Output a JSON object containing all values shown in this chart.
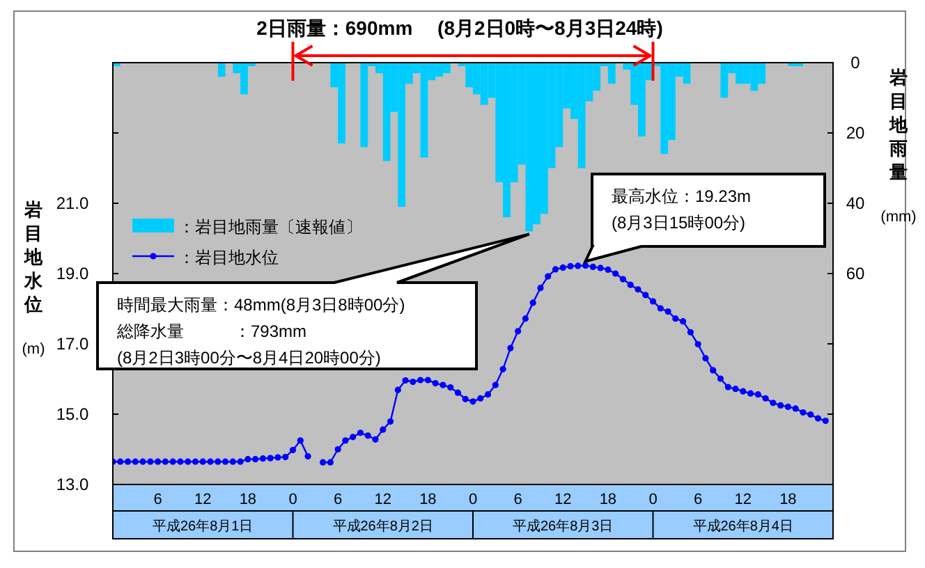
{
  "chart_data": {
    "type": "bar",
    "title": "2日雨量：690mm　 (8月2日0時〜8月3日24時)",
    "ylabel": "岩目地水位 (m)",
    "y2label": "岩目地雨量 (mm)",
    "xlim": [
      "--08-01T00:00",
      "--08-05T00:00"
    ],
    "xticks": [
      {
        "value": "--08-01T06:00",
        "label": "6"
      },
      {
        "value": "--08-01T12:00",
        "label": "12"
      },
      {
        "value": "--08-01T18:00",
        "label": "18"
      },
      {
        "value": "--08-02T00:00",
        "label": "0"
      },
      {
        "value": "--08-02T06:00",
        "label": "6"
      },
      {
        "value": "--08-02T12:00",
        "label": "12"
      },
      {
        "value": "--08-02T18:00",
        "label": "18"
      },
      {
        "value": "--08-03T00:00",
        "label": "0"
      },
      {
        "value": "--08-03T06:00",
        "label": "6"
      },
      {
        "value": "--08-03T12:00",
        "label": "12"
      },
      {
        "value": "--08-03T18:00",
        "label": "18"
      },
      {
        "value": "--08-04T00:00",
        "label": "0"
      },
      {
        "value": "--08-04T06:00",
        "label": "6"
      },
      {
        "value": "--08-04T12:00",
        "label": "12"
      },
      {
        "value": "--08-04T18:00",
        "label": "18"
      }
    ],
    "ylim": [
      13,
      25
    ],
    "yticks": [
      {
        "value": 13,
        "label": "13.0"
      },
      {
        "value": 15,
        "label": "15.0"
      },
      {
        "value": 17,
        "label": "17.0"
      },
      {
        "value": 19,
        "label": "19.0"
      },
      {
        "value": 21,
        "label": "21.0"
      },
      {
        "value": 23,
        "label": null
      }
    ],
    "y2lim": [
      120,
      0
    ],
    "y2ticks": [
      0,
      20,
      40,
      60,
      {
        "value": 80,
        "label": null
      },
      {
        "value": 100,
        "label": null
      }
    ],
    "legend": "left",
    "annotations": [
      {
        "text": "最高水位：19.23m\n(8月3日15時00分)",
        "x": "--08-03T15:00",
        "y": 19.23
      },
      "時間最大雨量：48mm(8月3日8時00分)\n総降水量　　　：793mm\n(8月2日3時00分〜8月4日20時00分)",
      "平成26年8月1日",
      "平成26年8月2日",
      "平成26年8月3日",
      "平成26年8月4日"
    ],
    "series": [
      {
        "name": "：岩目地雨量〔速報値〕",
        "axis": "y2",
        "color": "#00ccff",
        "x": [
          "--08-01T00:30",
          "--08-01T01:30",
          "--08-01T02:30",
          "--08-01T03:30",
          "--08-01T04:30",
          "--08-01T05:30",
          "--08-01T06:30",
          "--08-01T07:30",
          "--08-01T08:30",
          "--08-01T09:30",
          "--08-01T10:30",
          "--08-01T11:30",
          "--08-01T12:30",
          "--08-01T13:30",
          "--08-01T14:30",
          "--08-01T15:30",
          "--08-01T16:30",
          "--08-01T17:30",
          "--08-01T18:30",
          "--08-01T19:30",
          "--08-01T20:30",
          "--08-01T21:30",
          "--08-01T22:30",
          "--08-01T23:30",
          "--08-02T00:30",
          "--08-02T01:30",
          "--08-02T02:30",
          "--08-02T03:30",
          "--08-02T04:30",
          "--08-02T05:30",
          "--08-02T06:30",
          "--08-02T07:30",
          "--08-02T08:30",
          "--08-02T09:30",
          "--08-02T10:30",
          "--08-02T11:30",
          "--08-02T12:30",
          "--08-02T13:30",
          "--08-02T14:30",
          "--08-02T15:30",
          "--08-02T16:30",
          "--08-02T17:30",
          "--08-02T18:30",
          "--08-02T19:30",
          "--08-02T20:30",
          "--08-02T21:30",
          "--08-02T22:30",
          "--08-02T23:30",
          "--08-03T00:30",
          "--08-03T01:30",
          "--08-03T02:30",
          "--08-03T03:30",
          "--08-03T04:30",
          "--08-03T05:30",
          "--08-03T06:30",
          "--08-03T07:30",
          "--08-03T08:30",
          "--08-03T09:30",
          "--08-03T10:30",
          "--08-03T11:30",
          "--08-03T12:30",
          "--08-03T13:30",
          "--08-03T14:30",
          "--08-03T15:30",
          "--08-03T16:30",
          "--08-03T17:30",
          "--08-03T18:30",
          "--08-03T19:30",
          "--08-03T20:30",
          "--08-03T21:30",
          "--08-03T22:30",
          "--08-03T23:30",
          "--08-04T00:30",
          "--08-04T01:30",
          "--08-04T02:30",
          "--08-04T03:30",
          "--08-04T04:30",
          "--08-04T05:30",
          "--08-04T06:30",
          "--08-04T07:30",
          "--08-04T08:30",
          "--08-04T09:30",
          "--08-04T10:30",
          "--08-04T11:30",
          "--08-04T12:30",
          "--08-04T13:30",
          "--08-04T14:30",
          "--08-04T15:30",
          "--08-04T16:30",
          "--08-04T17:30",
          "--08-04T18:30",
          "--08-04T19:30",
          "--08-04T20:30",
          "--08-04T21:30",
          "--08-04T22:30",
          "--08-04T23:30"
        ],
        "values": [
          1,
          0,
          0,
          0,
          0,
          0,
          0,
          0,
          0,
          0,
          0,
          0,
          0,
          0,
          4,
          0,
          3,
          9,
          1,
          0,
          0,
          0,
          0,
          0,
          0,
          0,
          0,
          0,
          0,
          7,
          23,
          0,
          0,
          24,
          1,
          3,
          28,
          14,
          41,
          6,
          3,
          27,
          5,
          4,
          3,
          0,
          1,
          7,
          9,
          12,
          10,
          34,
          44,
          34,
          29,
          48,
          46,
          43,
          30,
          24,
          13,
          16,
          30,
          11,
          8,
          1,
          6,
          0,
          2,
          12,
          21,
          5,
          1,
          26,
          22,
          4,
          6,
          0,
          0,
          0,
          0,
          10,
          3,
          6,
          6,
          8,
          6,
          0,
          0,
          0,
          1,
          1,
          0,
          0,
          0,
          0
        ]
      },
      {
        "name": "：岩目地水位",
        "type": "line",
        "axis": "y",
        "color": "#0000ff",
        "marker": "circle",
        "x": [
          "--08-01T00:00",
          "--08-01T01:00",
          "--08-01T02:00",
          "--08-01T03:00",
          "--08-01T04:00",
          "--08-01T05:00",
          "--08-01T06:00",
          "--08-01T07:00",
          "--08-01T08:00",
          "--08-01T09:00",
          "--08-01T10:00",
          "--08-01T11:00",
          "--08-01T12:00",
          "--08-01T13:00",
          "--08-01T14:00",
          "--08-01T15:00",
          "--08-01T16:00",
          "--08-01T17:00",
          "--08-01T18:00",
          "--08-01T19:00",
          "--08-01T20:00",
          "--08-01T21:00",
          "--08-01T22:00",
          "--08-01T23:00",
          "--08-02T00:00",
          "--08-02T01:00",
          "--08-02T02:00",
          "--08-02T03:00",
          "--08-02T04:00",
          "--08-02T05:00",
          "--08-02T06:00",
          "--08-02T07:00",
          "--08-02T08:00",
          "--08-02T09:00",
          "--08-02T10:00",
          "--08-02T11:00",
          "--08-02T12:00",
          "--08-02T13:00",
          "--08-02T14:00",
          "--08-02T15:00",
          "--08-02T16:00",
          "--08-02T17:00",
          "--08-02T18:00",
          "--08-02T19:00",
          "--08-02T20:00",
          "--08-02T21:00",
          "--08-02T22:00",
          "--08-02T23:00",
          "--08-03T00:00",
          "--08-03T01:00",
          "--08-03T02:00",
          "--08-03T03:00",
          "--08-03T04:00",
          "--08-03T05:00",
          "--08-03T06:00",
          "--08-03T07:00",
          "--08-03T08:00",
          "--08-03T09:00",
          "--08-03T10:00",
          "--08-03T11:00",
          "--08-03T12:00",
          "--08-03T13:00",
          "--08-03T14:00",
          "--08-03T15:00",
          "--08-03T16:00",
          "--08-03T17:00",
          "--08-03T18:00",
          "--08-03T19:00",
          "--08-03T20:00",
          "--08-03T21:00",
          "--08-03T22:00",
          "--08-03T23:00",
          "--08-04T00:00",
          "--08-04T01:00",
          "--08-04T02:00",
          "--08-04T03:00",
          "--08-04T04:00",
          "--08-04T05:00",
          "--08-04T06:00",
          "--08-04T07:00",
          "--08-04T08:00",
          "--08-04T09:00",
          "--08-04T10:00",
          "--08-04T11:00",
          "--08-04T12:00",
          "--08-04T13:00",
          "--08-04T14:00",
          "--08-04T15:00",
          "--08-04T16:00",
          "--08-04T17:00",
          "--08-04T18:00",
          "--08-04T19:00",
          "--08-04T20:00",
          "--08-04T21:00",
          "--08-04T22:00",
          "--08-04T23:00"
        ],
        "values": [
          13.65,
          13.65,
          13.65,
          13.65,
          13.65,
          13.65,
          13.65,
          13.65,
          13.65,
          13.65,
          13.65,
          13.65,
          13.65,
          13.65,
          13.65,
          13.65,
          13.65,
          13.65,
          13.72,
          13.72,
          13.74,
          13.75,
          13.77,
          13.78,
          13.98,
          14.25,
          13.8,
          null,
          13.63,
          13.63,
          14.0,
          14.25,
          14.35,
          14.47,
          14.39,
          14.28,
          14.56,
          14.79,
          15.69,
          15.96,
          15.92,
          15.97,
          15.97,
          15.88,
          15.83,
          15.76,
          15.61,
          15.43,
          15.36,
          15.45,
          15.56,
          15.83,
          16.28,
          16.88,
          17.36,
          17.72,
          18.17,
          18.59,
          18.92,
          19.12,
          19.17,
          19.21,
          19.22,
          19.23,
          19.19,
          19.16,
          19.11,
          19.0,
          18.84,
          18.68,
          18.55,
          18.39,
          18.21,
          18.01,
          17.92,
          17.72,
          17.64,
          17.33,
          16.99,
          16.59,
          16.25,
          16.01,
          15.77,
          15.72,
          15.65,
          15.59,
          15.56,
          15.45,
          15.32,
          15.25,
          15.21,
          15.16,
          15.05,
          14.99,
          14.88,
          14.81
        ]
      }
    ]
  }
}
